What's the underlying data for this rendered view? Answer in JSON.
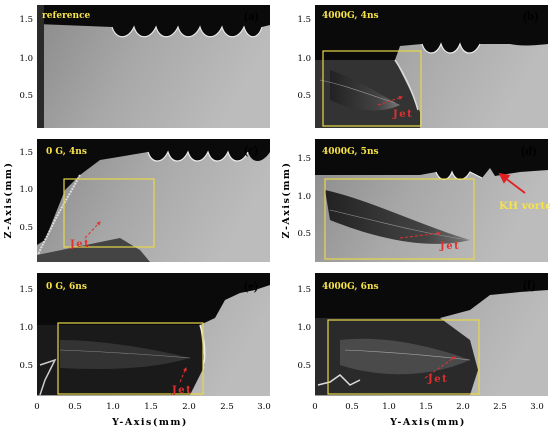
{
  "figure": {
    "y_axis_label": "Z-Axis(mm)",
    "x_axis_label": "Y-Axis(mm)",
    "y_ticks": [
      "0.5",
      "1.0",
      "1.5"
    ],
    "x_ticks": [
      "0",
      "0.5",
      "1.0",
      "1.5",
      "2.0",
      "2.5",
      "3.0"
    ]
  },
  "panels": [
    {
      "id": "a",
      "label": "(a)",
      "title": "reference",
      "jet": ""
    },
    {
      "id": "b",
      "label": "(b)",
      "title": "4000G, 4ns",
      "jet": "Jet"
    },
    {
      "id": "c",
      "label": "(c)",
      "title": "0 G, 4ns",
      "jet": "Jet"
    },
    {
      "id": "d",
      "label": "(d)",
      "title": "4000G, 5ns",
      "jet": "Jet",
      "annotation": "KH vortex"
    },
    {
      "id": "e",
      "label": "(e)",
      "title": "0 G, 6ns",
      "jet": "Jet"
    },
    {
      "id": "f",
      "label": "(f)",
      "title": "4000G, 6ns",
      "jet": "Jet"
    }
  ],
  "colors": {
    "title": "#f6e34a",
    "box": "#e8d84a",
    "jet": "#e03030",
    "annotation_arrow": "#e02020"
  }
}
